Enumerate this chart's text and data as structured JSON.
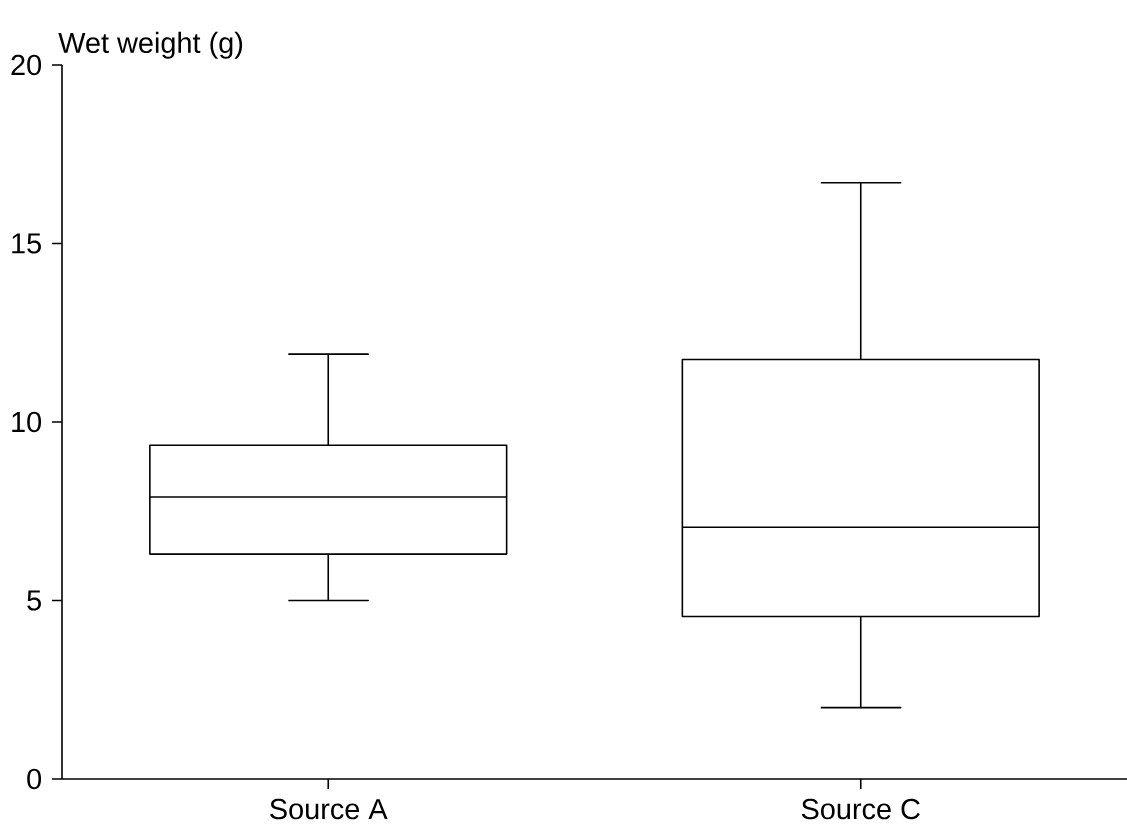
{
  "chart_data": {
    "type": "box",
    "ylabel": "Wet weight (g)",
    "categories": [
      "Source A",
      "Source C"
    ],
    "boxes": [
      {
        "low": 5.0,
        "q1": 6.3,
        "median": 7.9,
        "q3": 9.35,
        "high": 11.9
      },
      {
        "low": 2.0,
        "q1": 4.55,
        "median": 7.05,
        "q3": 11.75,
        "high": 16.7
      }
    ],
    "ylim": [
      0,
      20
    ],
    "yticks": [
      0,
      5,
      10,
      15,
      20
    ]
  }
}
